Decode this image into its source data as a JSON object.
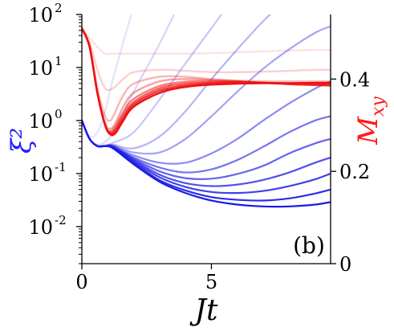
{
  "chart_data": {
    "type": "line",
    "panel_label": "(b)",
    "xlabel": "Jt",
    "ylabel_left": "ξ²",
    "ylabel_right": "M_xy",
    "xlim": [
      0,
      9.6
    ],
    "ylim_left": [
      0.002,
      100
    ],
    "ylim_right": [
      0,
      0.54
    ],
    "yscale_left": "log",
    "yscale_right": "linear",
    "x_ticks": [
      0,
      5
    ],
    "y_ticks_left": [
      {
        "base": "10",
        "exp": "2",
        "value": 100
      },
      {
        "base": "10",
        "exp": "1",
        "value": 10
      },
      {
        "base": "10",
        "exp": "0",
        "value": 1
      },
      {
        "base": "10",
        "exp": "-1",
        "value": 0.1
      },
      {
        "base": "10",
        "exp": "-2",
        "value": 0.01
      }
    ],
    "y_ticks_right": [
      {
        "label": "0",
        "value": 0
      },
      {
        "label": "0.2",
        "value": 0.2
      },
      {
        "label": "0.4",
        "value": 0.4
      }
    ],
    "colors": {
      "squeezing": "#1a1ae6",
      "magnetization": "#ee1111",
      "left_label": "#2020ff",
      "right_label": "#ff1a1a"
    },
    "squeezing_series": [
      {
        "alpha": 1.0,
        "points": [
          [
            0,
            1.0
          ],
          [
            0.3,
            0.45
          ],
          [
            0.6,
            0.33
          ],
          [
            0.9,
            0.33
          ],
          [
            1.2,
            0.3
          ],
          [
            2,
            0.15
          ],
          [
            3,
            0.07
          ],
          [
            4,
            0.043
          ],
          [
            5,
            0.031
          ],
          [
            6,
            0.026
          ],
          [
            7,
            0.024
          ],
          [
            8,
            0.024
          ],
          [
            9,
            0.026
          ],
          [
            9.6,
            0.029
          ]
        ]
      },
      {
        "alpha": 0.92,
        "points": [
          [
            0,
            1.0
          ],
          [
            0.3,
            0.45
          ],
          [
            0.6,
            0.33
          ],
          [
            0.9,
            0.33
          ],
          [
            1.2,
            0.3
          ],
          [
            2,
            0.16
          ],
          [
            3,
            0.075
          ],
          [
            4,
            0.048
          ],
          [
            5,
            0.036
          ],
          [
            6,
            0.032
          ],
          [
            7,
            0.031
          ],
          [
            8,
            0.034
          ],
          [
            9,
            0.042
          ],
          [
            9.6,
            0.05
          ]
        ]
      },
      {
        "alpha": 0.84,
        "points": [
          [
            0,
            1.0
          ],
          [
            0.3,
            0.45
          ],
          [
            0.6,
            0.33
          ],
          [
            0.9,
            0.33
          ],
          [
            1.2,
            0.31
          ],
          [
            2,
            0.17
          ],
          [
            3,
            0.085
          ],
          [
            4,
            0.056
          ],
          [
            5,
            0.045
          ],
          [
            6,
            0.043
          ],
          [
            7,
            0.047
          ],
          [
            8,
            0.058
          ],
          [
            9,
            0.078
          ],
          [
            9.6,
            0.1
          ]
        ]
      },
      {
        "alpha": 0.76,
        "points": [
          [
            0,
            1.0
          ],
          [
            0.3,
            0.45
          ],
          [
            0.6,
            0.33
          ],
          [
            0.9,
            0.33
          ],
          [
            1.2,
            0.31
          ],
          [
            2,
            0.18
          ],
          [
            3,
            0.095
          ],
          [
            4,
            0.066
          ],
          [
            5,
            0.058
          ],
          [
            6,
            0.062
          ],
          [
            7,
            0.076
          ],
          [
            8,
            0.105
          ],
          [
            9,
            0.16
          ],
          [
            9.6,
            0.2
          ]
        ]
      },
      {
        "alpha": 0.68,
        "points": [
          [
            0,
            1.0
          ],
          [
            0.3,
            0.45
          ],
          [
            0.6,
            0.33
          ],
          [
            0.9,
            0.33
          ],
          [
            1.2,
            0.32
          ],
          [
            2,
            0.19
          ],
          [
            3,
            0.11
          ],
          [
            4,
            0.082
          ],
          [
            5,
            0.08
          ],
          [
            6,
            0.098
          ],
          [
            7,
            0.14
          ],
          [
            8,
            0.24
          ],
          [
            9,
            0.37
          ],
          [
            9.6,
            0.45
          ]
        ]
      },
      {
        "alpha": 0.6,
        "points": [
          [
            0,
            1.0
          ],
          [
            0.3,
            0.45
          ],
          [
            0.6,
            0.33
          ],
          [
            0.9,
            0.33
          ],
          [
            1.2,
            0.32
          ],
          [
            2,
            0.2
          ],
          [
            3,
            0.13
          ],
          [
            4,
            0.105
          ],
          [
            5,
            0.12
          ],
          [
            6,
            0.18
          ],
          [
            7,
            0.32
          ],
          [
            8,
            0.6
          ],
          [
            9,
            1.0
          ],
          [
            9.6,
            1.2
          ]
        ]
      },
      {
        "alpha": 0.5,
        "points": [
          [
            0,
            1.0
          ],
          [
            0.3,
            0.45
          ],
          [
            0.6,
            0.33
          ],
          [
            0.9,
            0.33
          ],
          [
            1.2,
            0.33
          ],
          [
            2,
            0.22
          ],
          [
            3,
            0.16
          ],
          [
            4,
            0.16
          ],
          [
            5,
            0.24
          ],
          [
            6,
            0.45
          ],
          [
            7,
            1.0
          ],
          [
            8,
            2.1
          ],
          [
            9,
            4.0
          ],
          [
            9.6,
            5.5
          ]
        ]
      },
      {
        "alpha": 0.4,
        "points": [
          [
            0,
            1.0
          ],
          [
            0.3,
            0.45
          ],
          [
            0.6,
            0.33
          ],
          [
            0.9,
            0.33
          ],
          [
            1.2,
            0.34
          ],
          [
            2,
            0.25
          ],
          [
            3,
            0.25
          ],
          [
            4,
            0.45
          ],
          [
            5,
            1.2
          ],
          [
            6,
            3.5
          ],
          [
            7,
            9.5
          ],
          [
            8,
            22
          ],
          [
            9,
            45
          ],
          [
            9.6,
            60
          ]
        ]
      },
      {
        "alpha": 0.32,
        "points": [
          [
            0,
            1.0
          ],
          [
            0.3,
            0.45
          ],
          [
            0.6,
            0.33
          ],
          [
            0.9,
            0.33
          ],
          [
            1.2,
            0.35
          ],
          [
            2,
            0.3
          ],
          [
            3,
            0.5
          ],
          [
            4,
            1.5
          ],
          [
            5,
            6
          ],
          [
            6,
            22
          ],
          [
            7,
            75
          ],
          [
            7.6,
            140
          ]
        ]
      },
      {
        "alpha": 0.25,
        "points": [
          [
            0,
            1.0
          ],
          [
            0.3,
            0.45
          ],
          [
            0.6,
            0.33
          ],
          [
            0.9,
            0.34
          ],
          [
            1.2,
            0.38
          ],
          [
            2,
            0.6
          ],
          [
            3,
            2.5
          ],
          [
            4,
            12
          ],
          [
            5,
            55
          ],
          [
            5.6,
            140
          ]
        ]
      },
      {
        "alpha": 0.18,
        "points": [
          [
            0,
            1.0
          ],
          [
            0.3,
            0.45
          ],
          [
            0.6,
            0.35
          ],
          [
            0.9,
            0.4
          ],
          [
            1.2,
            0.6
          ],
          [
            2,
            3.5
          ],
          [
            3,
            28
          ],
          [
            3.7,
            140
          ]
        ]
      },
      {
        "alpha": 0.12,
        "points": [
          [
            0,
            1.0
          ],
          [
            0.3,
            0.5
          ],
          [
            0.6,
            0.6
          ],
          [
            0.9,
            1.5
          ],
          [
            1.2,
            6
          ],
          [
            1.6,
            30
          ],
          [
            2.0,
            140
          ]
        ]
      }
    ],
    "magnetization_series": [
      {
        "alpha": 1.0,
        "points": [
          [
            0,
            0.51
          ],
          [
            0.3,
            0.47
          ],
          [
            0.6,
            0.37
          ],
          [
            0.9,
            0.3
          ],
          [
            1.1,
            0.28
          ],
          [
            1.3,
            0.283
          ],
          [
            1.6,
            0.31
          ],
          [
            2,
            0.34
          ],
          [
            3,
            0.37
          ],
          [
            4,
            0.383
          ],
          [
            5,
            0.388
          ],
          [
            6,
            0.39
          ],
          [
            7,
            0.391
          ],
          [
            8,
            0.391
          ],
          [
            9,
            0.392
          ],
          [
            9.6,
            0.392
          ]
        ]
      },
      {
        "alpha": 0.85,
        "points": [
          [
            0,
            0.51
          ],
          [
            0.3,
            0.47
          ],
          [
            0.6,
            0.37
          ],
          [
            0.9,
            0.3
          ],
          [
            1.1,
            0.282
          ],
          [
            1.3,
            0.288
          ],
          [
            1.6,
            0.315
          ],
          [
            2,
            0.345
          ],
          [
            3,
            0.375
          ],
          [
            4,
            0.386
          ],
          [
            5,
            0.391
          ],
          [
            6,
            0.392
          ],
          [
            7,
            0.392
          ],
          [
            8,
            0.391
          ],
          [
            9,
            0.39
          ],
          [
            9.6,
            0.389
          ]
        ]
      },
      {
        "alpha": 0.7,
        "points": [
          [
            0,
            0.51
          ],
          [
            0.3,
            0.47
          ],
          [
            0.6,
            0.37
          ],
          [
            0.9,
            0.3
          ],
          [
            1.1,
            0.284
          ],
          [
            1.3,
            0.292
          ],
          [
            1.6,
            0.32
          ],
          [
            2,
            0.35
          ],
          [
            3,
            0.38
          ],
          [
            4,
            0.39
          ],
          [
            5,
            0.393
          ],
          [
            6,
            0.394
          ],
          [
            7,
            0.392
          ],
          [
            8,
            0.389
          ],
          [
            9,
            0.387
          ],
          [
            9.6,
            0.386
          ]
        ]
      },
      {
        "alpha": 0.55,
        "points": [
          [
            0,
            0.51
          ],
          [
            0.3,
            0.47
          ],
          [
            0.6,
            0.37
          ],
          [
            0.9,
            0.3
          ],
          [
            1.1,
            0.287
          ],
          [
            1.3,
            0.298
          ],
          [
            1.6,
            0.328
          ],
          [
            2,
            0.357
          ],
          [
            3,
            0.385
          ],
          [
            4,
            0.394
          ],
          [
            5,
            0.396
          ],
          [
            6,
            0.395
          ],
          [
            7,
            0.392
          ],
          [
            8,
            0.389
          ],
          [
            9,
            0.387
          ],
          [
            9.6,
            0.386
          ]
        ]
      },
      {
        "alpha": 0.4,
        "points": [
          [
            0,
            0.51
          ],
          [
            0.3,
            0.47
          ],
          [
            0.6,
            0.37
          ],
          [
            0.9,
            0.305
          ],
          [
            1.1,
            0.292
          ],
          [
            1.3,
            0.305
          ],
          [
            1.6,
            0.34
          ],
          [
            2,
            0.37
          ],
          [
            3,
            0.395
          ],
          [
            4,
            0.4
          ],
          [
            5,
            0.398
          ],
          [
            6,
            0.395
          ],
          [
            7,
            0.392
          ],
          [
            8,
            0.39
          ],
          [
            9,
            0.389
          ],
          [
            9.6,
            0.389
          ]
        ]
      },
      {
        "alpha": 0.3,
        "points": [
          [
            0,
            0.51
          ],
          [
            0.3,
            0.47
          ],
          [
            0.6,
            0.38
          ],
          [
            0.9,
            0.32
          ],
          [
            1.1,
            0.31
          ],
          [
            1.3,
            0.33
          ],
          [
            1.6,
            0.365
          ],
          [
            2,
            0.39
          ],
          [
            3,
            0.405
          ],
          [
            4,
            0.405
          ],
          [
            5,
            0.4
          ],
          [
            6,
            0.397
          ],
          [
            7,
            0.395
          ],
          [
            8,
            0.395
          ],
          [
            9,
            0.395
          ],
          [
            9.6,
            0.395
          ]
        ]
      },
      {
        "alpha": 0.2,
        "points": [
          [
            0,
            0.51
          ],
          [
            0.3,
            0.48
          ],
          [
            0.6,
            0.42
          ],
          [
            0.9,
            0.38
          ],
          [
            1.2,
            0.38
          ],
          [
            1.6,
            0.4
          ],
          [
            2,
            0.415
          ],
          [
            3,
            0.42
          ],
          [
            4,
            0.418
          ],
          [
            5,
            0.415
          ],
          [
            6,
            0.415
          ],
          [
            7,
            0.416
          ],
          [
            8,
            0.418
          ],
          [
            9,
            0.42
          ],
          [
            9.6,
            0.42
          ]
        ]
      },
      {
        "alpha": 0.12,
        "points": [
          [
            0,
            0.51
          ],
          [
            0.3,
            0.49
          ],
          [
            0.6,
            0.47
          ],
          [
            0.9,
            0.455
          ],
          [
            1.2,
            0.455
          ],
          [
            2,
            0.455
          ],
          [
            3,
            0.455
          ],
          [
            4,
            0.455
          ],
          [
            5,
            0.456
          ],
          [
            6,
            0.458
          ],
          [
            7,
            0.46
          ],
          [
            8,
            0.462
          ],
          [
            9,
            0.463
          ],
          [
            9.6,
            0.463
          ]
        ]
      }
    ]
  }
}
